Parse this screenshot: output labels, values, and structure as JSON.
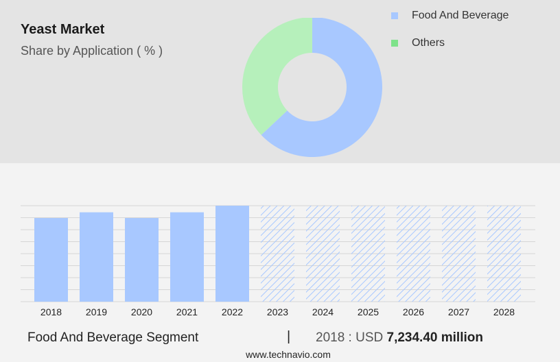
{
  "header": {
    "title": "Yeast Market",
    "subtitle": "Share by Application ( % )"
  },
  "colors": {
    "food_and_beverage": "#a8c8ff",
    "others": "#b6f0bb",
    "legend_others_swatch": "#7ee28a",
    "bar": "#a8c8ff",
    "forecast_hatch": "#a8c8ff"
  },
  "legend": [
    {
      "label": "Food And Beverage",
      "color": "#a8c8ff"
    },
    {
      "label": "Others",
      "color": "#7ee28a"
    }
  ],
  "chart_data": [
    {
      "type": "pie",
      "variant": "donut",
      "title": "",
      "labels": [
        "Food And Beverage",
        "Others"
      ],
      "values": [
        63,
        37
      ],
      "unit": "%"
    },
    {
      "type": "bar",
      "categories": [
        "2018",
        "2019",
        "2020",
        "2021",
        "2022",
        "2023",
        "2024",
        "2025",
        "2026",
        "2027",
        "2028"
      ],
      "values": [
        7234.4,
        7731,
        7234.4,
        7731,
        8303,
        null,
        null,
        null,
        null,
        null,
        null
      ],
      "forecast_from": "2023",
      "forecast_style": "hatched",
      "ylim": [
        0,
        8303
      ],
      "grid": true
    }
  ],
  "footer": {
    "segment": "Food And Beverage Segment",
    "divider": "|",
    "year_label": "2018 : USD",
    "value": "7,234.40 million",
    "website": "www.technavio.com"
  }
}
